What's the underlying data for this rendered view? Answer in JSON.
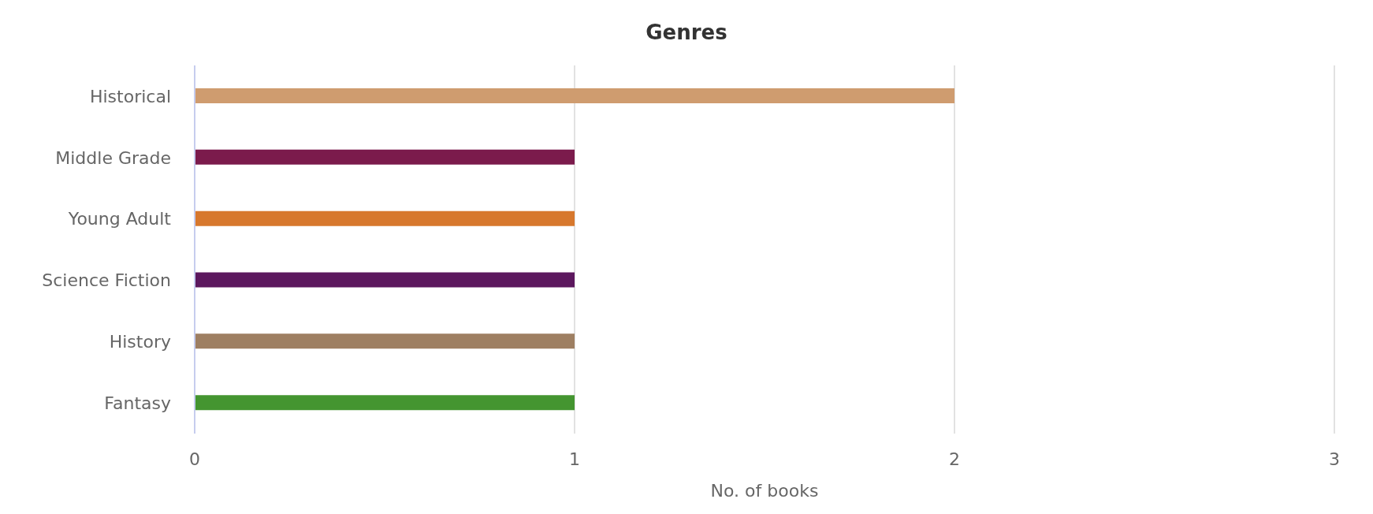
{
  "chart_data": {
    "type": "bar",
    "orientation": "horizontal",
    "title": "Genres",
    "xlabel": "No. of books",
    "categories": [
      "Historical",
      "Middle Grade",
      "Young Adult",
      "Science Fiction",
      "History",
      "Fantasy"
    ],
    "values": [
      2,
      1,
      1,
      1,
      1,
      1
    ],
    "colors": [
      "#cf9c6f",
      "#7b1b4c",
      "#d7782d",
      "#5c185e",
      "#9e7f62",
      "#449530"
    ],
    "xlim": [
      0,
      3
    ],
    "xticks": [
      0,
      1,
      2,
      3
    ],
    "grid": "x"
  }
}
